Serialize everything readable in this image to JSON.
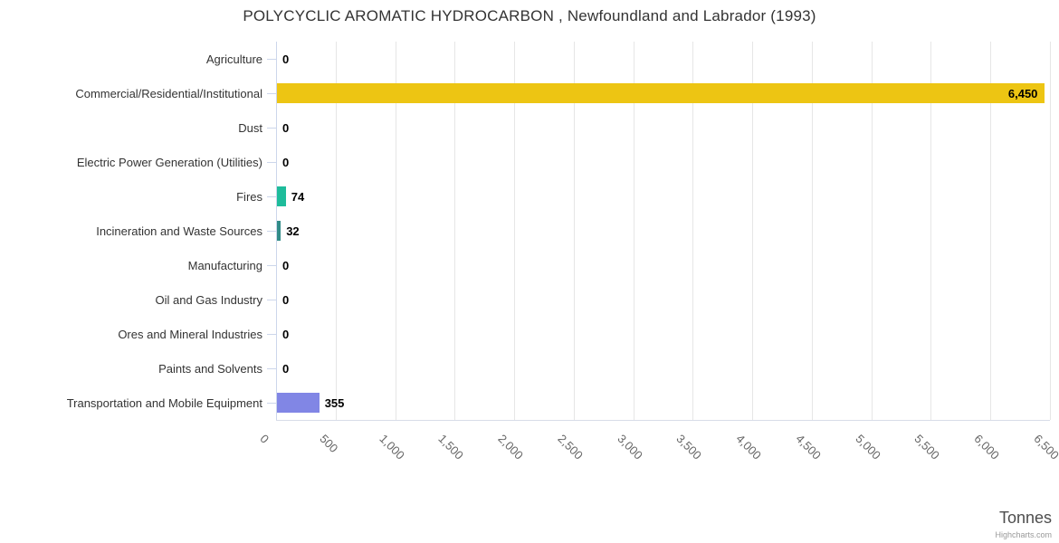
{
  "header": {
    "title": "POLYCYCLIC AROMATIC HYDROCARBON , Newfoundland and Labrador (1993)"
  },
  "chart_data": {
    "type": "bar",
    "orientation": "horizontal",
    "title": "POLYCYCLIC AROMATIC HYDROCARBON , Newfoundland and Labrador (1993)",
    "categories": [
      "Agriculture",
      "Commercial/Residential/Institutional",
      "Dust",
      "Electric Power Generation (Utilities)",
      "Fires",
      "Incineration and Waste Sources",
      "Manufacturing",
      "Oil and Gas Industry",
      "Ores and Mineral Industries",
      "Paints and Solvents",
      "Transportation and Mobile Equipment"
    ],
    "values": [
      0,
      6450,
      0,
      0,
      74,
      32,
      0,
      0,
      0,
      0,
      355
    ],
    "value_labels": [
      "0",
      "6,450",
      "0",
      "0",
      "74",
      "32",
      "0",
      "0",
      "0",
      "0",
      "355"
    ],
    "bar_colors": [
      null,
      "#edc513",
      null,
      null,
      "#1ebc9b",
      "#318c88",
      null,
      null,
      null,
      null,
      "#8186e5"
    ],
    "xlabel": "Tonnes",
    "ylabel": "",
    "xlim": [
      0,
      6500
    ],
    "x_ticks": [
      0,
      500,
      1000,
      1500,
      2000,
      2500,
      3000,
      3500,
      4000,
      4500,
      5000,
      5500,
      6000,
      6500
    ],
    "x_tick_labels": [
      "0",
      "500",
      "1,000",
      "1,500",
      "2,000",
      "2,500",
      "3,000",
      "3,500",
      "4,000",
      "4,500",
      "5,000",
      "5,500",
      "6,000",
      "6,500"
    ],
    "grid": "vertical-on",
    "legend": "none"
  },
  "colors": {
    "grid": "#e6e6e6",
    "axis": "#ccd6eb",
    "category_label": "#333333",
    "tick_label": "#666666",
    "value_label": "#000000",
    "title": "#333333"
  },
  "credits": {
    "label": "Highcharts.com"
  }
}
